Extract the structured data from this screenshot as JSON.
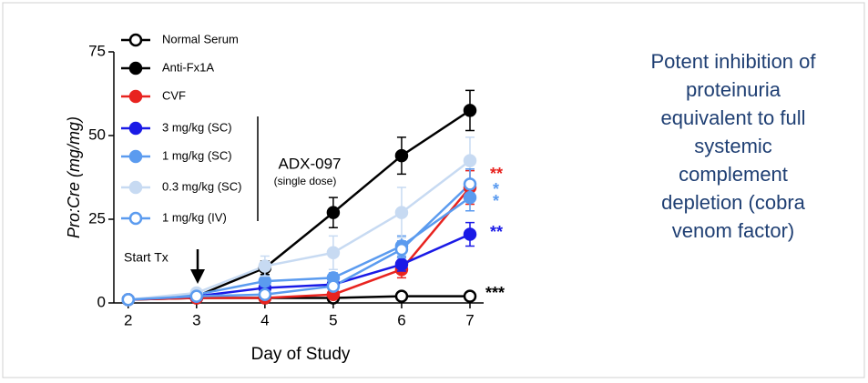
{
  "chart_data": {
    "type": "line",
    "x_label": "Day of Study",
    "y_label": "Pro:Cre (mg/mg)",
    "x": [
      2,
      3,
      4,
      5,
      6,
      7
    ],
    "xlim": [
      1.79,
      7.2
    ],
    "xticks": [
      2,
      3,
      4,
      5,
      6,
      7
    ],
    "ylim": [
      0,
      75
    ],
    "yticks": [
      0,
      25,
      50,
      75
    ],
    "series": [
      {
        "name": "Normal Serum",
        "color": "#000000",
        "marker": "open",
        "values": [
          1,
          1.5,
          1.5,
          1.5,
          2,
          2
        ],
        "errors": [
          0.3,
          0.3,
          0.3,
          0.3,
          0.3,
          0.3
        ]
      },
      {
        "name": "Anti-Fx1A",
        "color": "#000000",
        "marker": "filled",
        "values": [
          1,
          2,
          10.5,
          27,
          44,
          57.5
        ],
        "errors": [
          0.5,
          0.5,
          2,
          4.5,
          5.5,
          6
        ]
      },
      {
        "name": "CVF",
        "color": "#e8231f",
        "marker": "filled",
        "values": [
          1,
          1.5,
          1.5,
          2.5,
          10,
          34.5
        ],
        "errors": [
          0.3,
          0.3,
          0.5,
          0.5,
          2.5,
          5
        ]
      },
      {
        "name": "3 mg/kg (SC)",
        "color": "#1a1ae6",
        "marker": "filled",
        "values": [
          1,
          2,
          4.5,
          5.5,
          11.5,
          20.5
        ],
        "errors": [
          0.3,
          0.5,
          1,
          1,
          2,
          3.5
        ]
      },
      {
        "name": "1 mg/kg (SC)",
        "color": "#5b9bef",
        "marker": "filled",
        "values": [
          1,
          2.5,
          6.5,
          7.5,
          17,
          31.5
        ],
        "errors": [
          0.3,
          0.5,
          1.5,
          1.5,
          3,
          4
        ]
      },
      {
        "name": "0.3 mg/kg (SC)",
        "color": "#c7daf2",
        "marker": "filled",
        "values": [
          1,
          3,
          11,
          15,
          27,
          42.5
        ],
        "errors": [
          0.3,
          0.5,
          3,
          5,
          7.5,
          7
        ]
      },
      {
        "name": "1 mg/kg (IV)",
        "color": "#5b9bef",
        "marker": "open",
        "values": [
          1,
          2,
          2.5,
          5,
          16,
          35.5
        ],
        "errors": [
          0.3,
          0.5,
          0.5,
          1,
          2.5,
          4.5
        ]
      }
    ],
    "group_label": "ADX-097",
    "group_sublabel": "(single dose)",
    "start_label": "Start Tx",
    "annotations": [
      {
        "text": "**",
        "color": "#e8231f"
      },
      {
        "text": "*",
        "color": "#5b9bef"
      },
      {
        "text": "*",
        "color": "#5b9bef"
      },
      {
        "text": "**",
        "color": "#1a1ae6"
      },
      {
        "text": "***",
        "color": "#000000"
      }
    ]
  },
  "side_note": "Potent inhibition of proteinuria equivalent to full systemic complement depletion (cobra venom factor)"
}
